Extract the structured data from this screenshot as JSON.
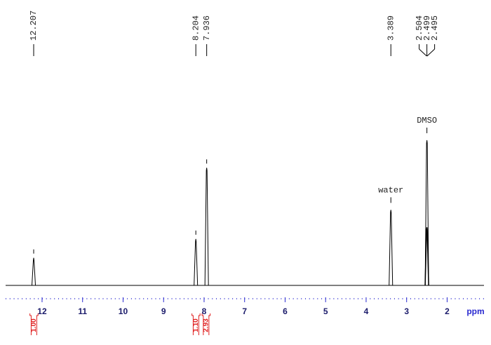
{
  "chart_data": {
    "type": "nmr",
    "x": [
      12.207,
      8.204,
      7.936,
      3.389,
      2.504,
      2.499,
      2.495
    ],
    "values": [
      19,
      32,
      81,
      52,
      40,
      100,
      40
    ],
    "xlim": [
      12.9,
      1.09
    ],
    "ylim": [
      0,
      185
    ],
    "xticks": [
      12,
      11,
      10,
      9,
      8,
      7,
      6,
      5,
      4,
      3,
      2
    ],
    "xlabel": "ppm",
    "color": "#000000",
    "axis_color": "#2a2ad0",
    "annotations": [
      {
        "text": "water",
        "x": 3.389
      },
      {
        "text": "DMSO",
        "x": 2.499
      }
    ],
    "integrals": [
      {
        "from": 12.3,
        "to": 12.1,
        "value": {
          "value": 1,
          "label": "1.00"
        }
      },
      {
        "from": 8.3,
        "to": 8.1,
        "value": {
          "value": 1.1,
          "label": "1.10"
        }
      },
      {
        "from": 8.05,
        "to": 7.85,
        "value": 2.93
      }
    ],
    "integral_color": "#e02020"
  }
}
